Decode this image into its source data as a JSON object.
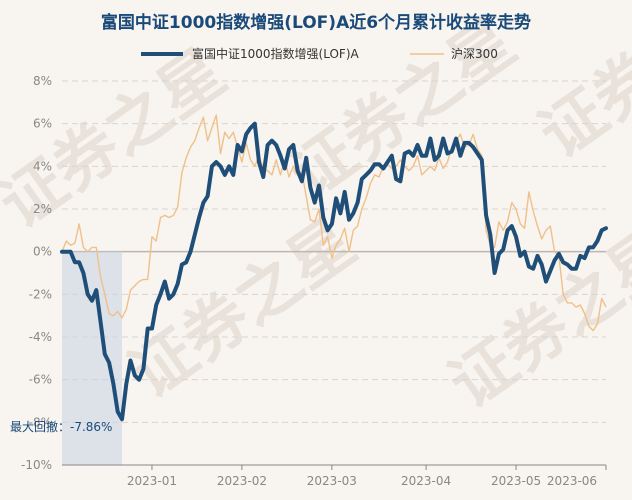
{
  "colors": {
    "fund": "#1f4e79",
    "index": "#f0c08a",
    "grid": "#d9d4cf",
    "drawdown_fill": "#c9d6e2"
  },
  "chart_data": {
    "type": "line",
    "title": "富国中证1000指数增强(LOF)A近6个月累计收益率走势",
    "legend_position": "top",
    "grid": true,
    "ylim": [
      -10,
      8
    ],
    "yticks": [
      8,
      6,
      4,
      2,
      0,
      -2,
      -4,
      -6,
      -8,
      -10
    ],
    "ytick_labels": [
      "8%",
      "6%",
      "4%",
      "2%",
      "0%",
      "-2%",
      "-4%",
      "-6%",
      "-8%",
      "-10%"
    ],
    "xtick_labels": [
      "2023-01",
      "2023-02",
      "2023-03",
      "2023-04",
      "2023-05",
      "2023-06"
    ],
    "xtick_positions": [
      21,
      42,
      63,
      85,
      106,
      127
    ],
    "num_points": 128,
    "series": [
      {
        "name": "富国中证1000指数增强(LOF)A",
        "values": [
          0.0,
          0.0,
          0.0,
          -0.5,
          -0.5,
          -1.0,
          -2.0,
          -2.3,
          -1.8,
          -3.3,
          -4.8,
          -5.2,
          -6.2,
          -7.5,
          -7.86,
          -6.2,
          -5.1,
          -5.8,
          -6.0,
          -5.5,
          -3.6,
          -3.6,
          -2.5,
          -2.0,
          -1.4,
          -2.2,
          -2.0,
          -1.5,
          -0.6,
          -0.5,
          0.0,
          0.8,
          1.6,
          2.3,
          2.6,
          4.0,
          4.2,
          4.0,
          3.6,
          4.0,
          3.6,
          5.0,
          4.7,
          5.5,
          5.8,
          6.0,
          4.2,
          3.5,
          5.0,
          5.2,
          5.0,
          4.5,
          3.9,
          4.8,
          5.0,
          3.8,
          3.3,
          4.4,
          3.0,
          2.3,
          3.1,
          1.6,
          1.0,
          1.3,
          2.5,
          1.8,
          2.8,
          1.5,
          1.8,
          2.3,
          3.4,
          3.6,
          3.8,
          4.1,
          4.1,
          3.9,
          4.2,
          4.5,
          3.4,
          3.3,
          4.6,
          4.7,
          4.5,
          5.0,
          4.5,
          4.5,
          5.3,
          4.3,
          4.5,
          5.3,
          4.6,
          4.7,
          5.3,
          4.5,
          5.1,
          5.1,
          4.9,
          4.6,
          4.3,
          1.7,
          0.8,
          -1.0,
          -0.1,
          0.1,
          1.0,
          1.2,
          0.7,
          -0.2,
          0.0,
          -0.7,
          -0.8,
          -0.2,
          -0.6,
          -1.4,
          -0.9,
          -0.4,
          -0.1,
          -0.5,
          -0.6,
          -0.8,
          -0.8,
          -0.2,
          -0.3,
          0.2,
          0.2,
          0.5,
          1.0,
          1.1
        ]
      },
      {
        "name": "沪深300",
        "values": [
          0.0,
          0.5,
          0.3,
          0.4,
          1.3,
          0.2,
          0.0,
          0.2,
          0.2,
          -1.2,
          -2.0,
          -2.9,
          -3.0,
          -2.8,
          -3.1,
          -2.7,
          -1.8,
          -1.6,
          -1.4,
          -1.3,
          -1.3,
          0.7,
          0.5,
          1.6,
          1.7,
          1.6,
          1.7,
          2.1,
          3.7,
          4.4,
          4.9,
          5.2,
          5.8,
          6.3,
          5.2,
          5.8,
          6.4,
          4.6,
          5.6,
          5.3,
          5.6,
          4.9,
          4.2,
          5.1,
          4.3,
          4.0,
          4.5,
          3.9,
          3.8,
          3.6,
          4.3,
          3.6,
          4.3,
          3.5,
          4.0,
          3.6,
          3.7,
          2.6,
          1.5,
          1.4,
          2.0,
          0.3,
          0.7,
          -0.3,
          0.3,
          0.6,
          1.1,
          0.0,
          1.0,
          1.2,
          2.0,
          2.5,
          3.2,
          3.6,
          3.5,
          4.0,
          4.1,
          3.9,
          4.0,
          4.3,
          4.0,
          3.8,
          4.0,
          4.5,
          3.6,
          3.8,
          4.0,
          3.8,
          4.4,
          3.9,
          4.2,
          4.9,
          5.2,
          5.5,
          4.9,
          5.0,
          5.5,
          4.8,
          4.5,
          1.0,
          0.3,
          0.2,
          1.4,
          1.0,
          1.4,
          2.3,
          2.0,
          1.3,
          1.1,
          2.8,
          1.9,
          1.2,
          0.6,
          1.0,
          1.2,
          0.0,
          -0.2,
          -2.0,
          -2.4,
          -2.4,
          -2.6,
          -2.5,
          -2.9,
          -3.5,
          -3.7,
          -3.4,
          -2.2,
          -2.6
        ]
      }
    ],
    "max_drawdown": {
      "label": "最大回撤",
      "value_text": "-7.86%",
      "start_index": 0,
      "end_index": 14
    },
    "watermark": "证券之星"
  }
}
